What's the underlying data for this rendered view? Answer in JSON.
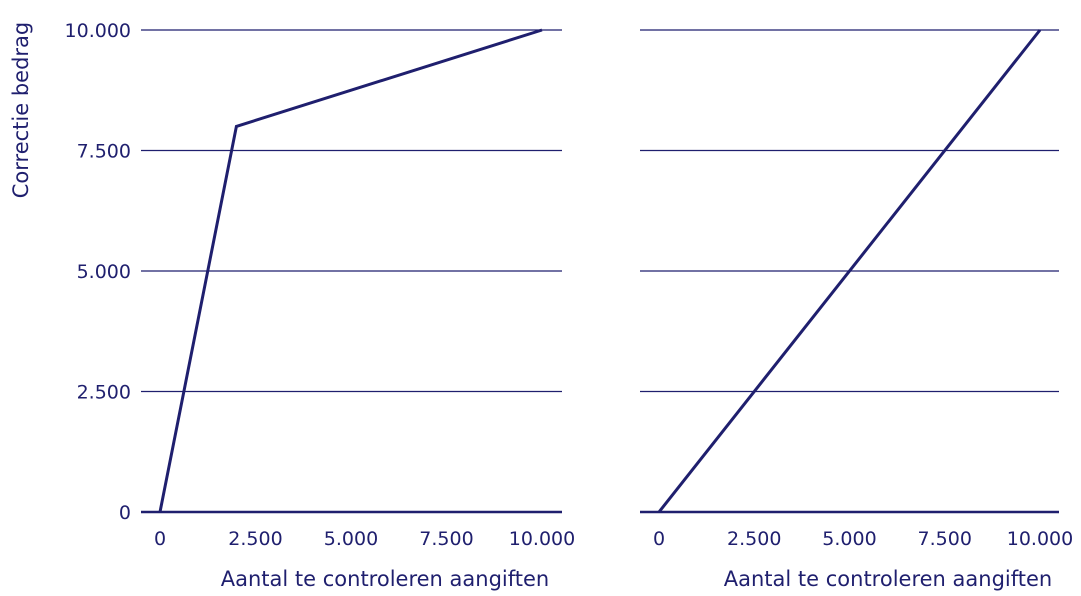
{
  "colors": {
    "ink": "#1f1f6e",
    "background": "#ffffff"
  },
  "chart_data": [
    {
      "type": "line",
      "xlabel": "Aantal te controleren aangiften",
      "ylabel": "Correctie bedrag",
      "xlim": [
        0,
        10000
      ],
      "ylim": [
        0,
        10000
      ],
      "x_ticks": [
        "0",
        "2.500",
        "5.000",
        "7.500",
        "10.000"
      ],
      "y_ticks": [
        "0",
        "2.500",
        "5.000",
        "7.500",
        "10.000"
      ],
      "grid": true,
      "series": [
        {
          "x": [
            0,
            2000,
            10000
          ],
          "y": [
            0,
            8000,
            10000
          ]
        }
      ]
    },
    {
      "type": "line",
      "xlabel": "Aantal te controleren aangiften",
      "ylabel": "",
      "xlim": [
        0,
        10000
      ],
      "ylim": [
        0,
        10000
      ],
      "x_ticks": [
        "0",
        "2.500",
        "5.000",
        "7.500",
        "10.000"
      ],
      "y_ticks": [],
      "grid": true,
      "series": [
        {
          "x": [
            0,
            10000
          ],
          "y": [
            0,
            10000
          ]
        }
      ]
    }
  ]
}
